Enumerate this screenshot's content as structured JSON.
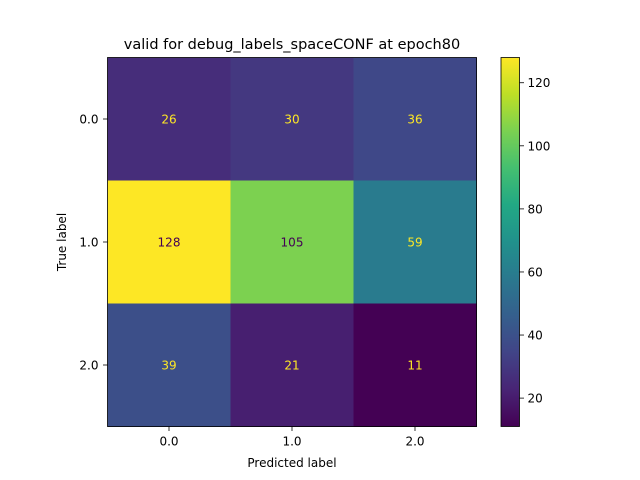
{
  "chart_data": {
    "type": "heatmap",
    "title": "valid for debug_labels_spaceCONF at epoch80",
    "xlabel": "Predicted label",
    "ylabel": "True label",
    "x_categories": [
      "0.0",
      "1.0",
      "2.0"
    ],
    "y_categories": [
      "0.0",
      "1.0",
      "2.0"
    ],
    "values": [
      [
        26,
        30,
        36
      ],
      [
        128,
        105,
        59
      ],
      [
        39,
        21,
        11
      ]
    ],
    "colormap": "viridis",
    "color_range": [
      11,
      128
    ],
    "colorbar_ticks": [
      "20",
      "40",
      "60",
      "80",
      "100",
      "120"
    ],
    "colorbar_tick_values": [
      20,
      40,
      60,
      80,
      100,
      120
    ],
    "grid": false
  }
}
